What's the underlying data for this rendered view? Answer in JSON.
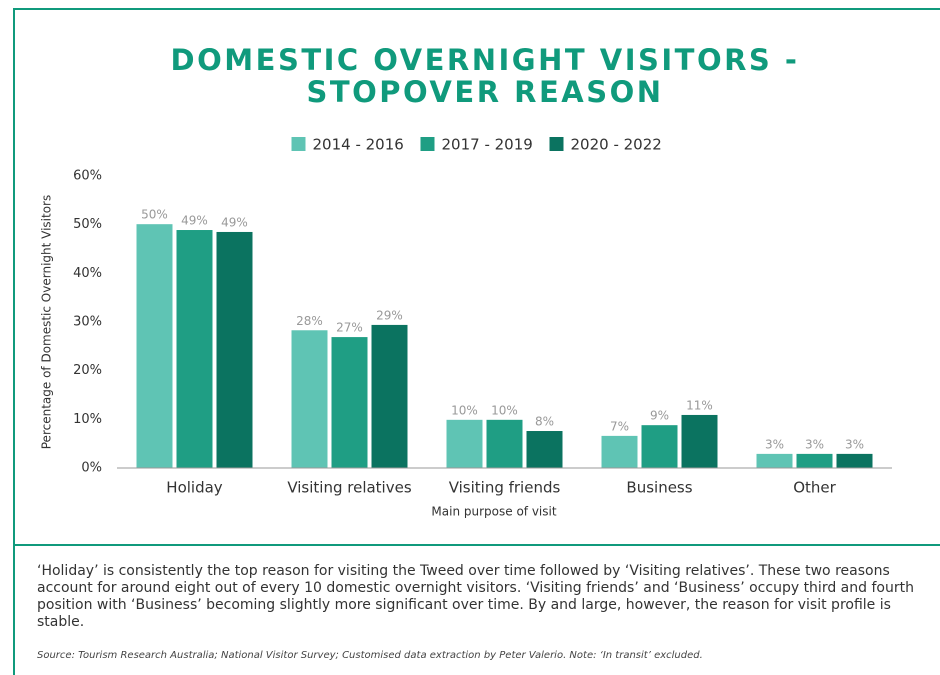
{
  "chart_data": {
    "type": "bar",
    "title": "DOMESTIC OVERNIGHT VISITORS - STOPOVER REASON",
    "x_label": "Main purpose of visit",
    "y_label": "Percentage of Domestic Overnight Visitors",
    "categories": [
      "Holiday",
      "Visiting relatives",
      "Visiting friends",
      "Business",
      "Other"
    ],
    "series": [
      {
        "name": "2014 - 2016",
        "color": "#5fc4b4",
        "values": [
          50.1,
          28.3,
          9.9,
          6.6,
          2.9
        ],
        "value_labels": [
          "50%",
          "28%",
          "10%",
          "7%",
          "3%"
        ]
      },
      {
        "name": "2017 - 2019",
        "color": "#1f9e84",
        "values": [
          48.9,
          26.9,
          9.9,
          8.8,
          2.9
        ],
        "value_labels": [
          "49%",
          "27%",
          "10%",
          "9%",
          "3%"
        ]
      },
      {
        "name": "2020 - 2022",
        "color": "#0b7360",
        "values": [
          48.5,
          29.4,
          7.6,
          10.9,
          2.9
        ],
        "value_labels": [
          "49%",
          "29%",
          "8%",
          "11%",
          "3%"
        ]
      }
    ],
    "ylim": [
      0,
      60
    ],
    "yticks": [
      {
        "value": 0,
        "label": "0%"
      },
      {
        "value": 10,
        "label": "10%"
      },
      {
        "value": 20,
        "label": "20%"
      },
      {
        "value": 30,
        "label": "30%"
      },
      {
        "value": 40,
        "label": "40%"
      },
      {
        "value": 50,
        "label": "50%"
      },
      {
        "value": 60,
        "label": "60%"
      }
    ],
    "grid": false,
    "legend": "top"
  },
  "commentary": "‘Holiday’ is consistently the top reason for visiting the Tweed over time followed by ‘Visiting relatives’. These two reasons account for around eight out of every 10 domestic overnight visitors. ‘Visiting friends’ and ‘Business’ occupy third and fourth position with ‘Business’ becoming slightly more significant over time. By and large, however, the reason for visit profile is stable.",
  "source": "Source: Tourism Research Australia; National Visitor Survey; Customised data extraction by Peter Valerio. Note: ‘In transit’ excluded."
}
